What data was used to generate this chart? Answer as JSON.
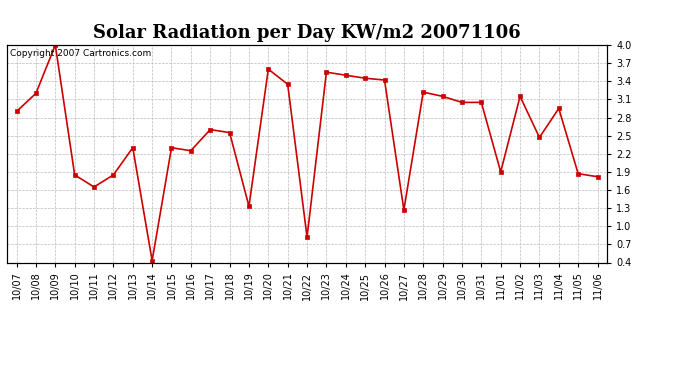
{
  "title": "Solar Radiation per Day KW/m2 20071106",
  "copyright": "Copyright 2007 Cartronics.com",
  "labels": [
    "10/07",
    "10/08",
    "10/09",
    "10/10",
    "10/11",
    "10/12",
    "10/13",
    "10/14",
    "10/15",
    "10/16",
    "10/17",
    "10/18",
    "10/19",
    "10/20",
    "10/21",
    "10/22",
    "10/23",
    "10/24",
    "10/25",
    "10/26",
    "10/27",
    "10/28",
    "10/29",
    "10/30",
    "10/31",
    "11/01",
    "11/02",
    "11/03",
    "11/04",
    "11/05",
    "11/06"
  ],
  "values": [
    2.9,
    3.2,
    4.0,
    1.85,
    1.65,
    1.85,
    2.3,
    0.43,
    2.3,
    2.25,
    2.6,
    2.55,
    1.33,
    3.6,
    3.35,
    0.82,
    3.55,
    3.5,
    3.45,
    3.42,
    1.27,
    3.22,
    3.15,
    3.05,
    3.05,
    1.9,
    3.15,
    2.47,
    2.95,
    1.87,
    1.82
  ],
  "line_color": "#cc0000",
  "marker": "s",
  "marker_size": 3,
  "line_width": 1.2,
  "ylim": [
    0.4,
    4.0
  ],
  "yticks": [
    0.4,
    0.7,
    1.0,
    1.3,
    1.6,
    1.9,
    2.2,
    2.5,
    2.8,
    3.1,
    3.4,
    3.7,
    4.0
  ],
  "grid_color": "#bbbbbb",
  "bg_color": "#ffffff",
  "title_fontsize": 13,
  "tick_fontsize": 7,
  "copyright_fontsize": 6.5,
  "fig_width": 6.9,
  "fig_height": 3.75,
  "dpi": 100
}
